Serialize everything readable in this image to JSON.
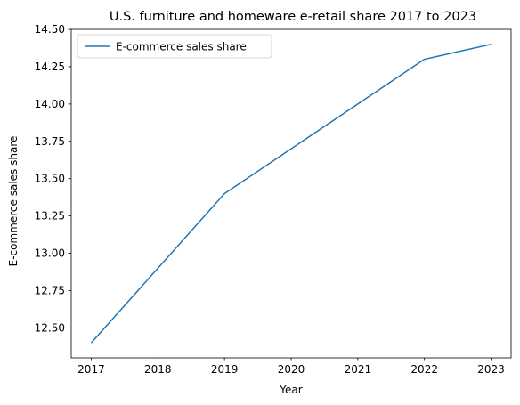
{
  "chart_data": {
    "type": "line",
    "title": "U.S. furniture and homeware e-retail share 2017 to 2023",
    "xlabel": "Year",
    "ylabel": "E-commerce sales share",
    "x": [
      2017,
      2019,
      2022,
      2023
    ],
    "series": [
      {
        "name": "E-commerce sales share",
        "color": "#1f77b4",
        "values": [
          12.4,
          13.4,
          14.3,
          14.4
        ]
      }
    ],
    "xticks": [
      "2017",
      "2018",
      "2019",
      "2020",
      "2021",
      "2022",
      "2023"
    ],
    "yticks": [
      "12.50",
      "12.75",
      "13.00",
      "13.25",
      "13.50",
      "13.75",
      "14.00",
      "14.25",
      "14.50"
    ],
    "xlim": [
      2016.7,
      2023.3
    ],
    "ylim": [
      12.3,
      14.5
    ],
    "grid": false,
    "legend_position": "top-left"
  }
}
